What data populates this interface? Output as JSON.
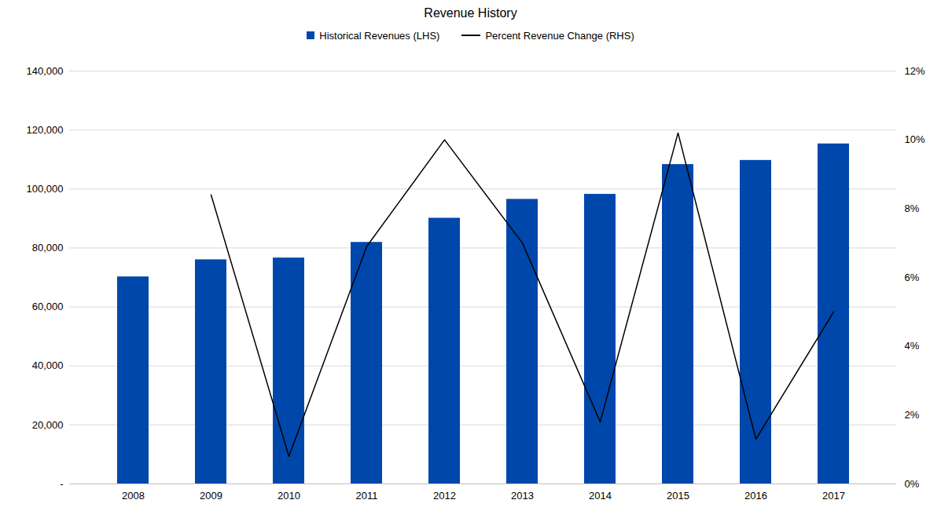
{
  "chart_data": {
    "type": "bar",
    "title": "Revenue History",
    "categories": [
      "2008",
      "2009",
      "2010",
      "2011",
      "2012",
      "2013",
      "2014",
      "2015",
      "2016",
      "2017"
    ],
    "series": [
      {
        "name": "Historical Revenues (LHS)",
        "type": "bar",
        "color": "#0047ab",
        "values": [
          70200,
          76000,
          76600,
          81900,
          90100,
          96500,
          98200,
          108300,
          109700,
          115300
        ]
      },
      {
        "name": "Percent Revenue Change (RHS)",
        "type": "line",
        "axis": "y2",
        "color": "#000000",
        "values": [
          null,
          8.4,
          0.8,
          6.9,
          10.0,
          7.0,
          1.8,
          10.2,
          1.3,
          5.0
        ]
      }
    ],
    "ylim": [
      0,
      140000
    ],
    "yticks": [
      {
        "value": 0,
        "label": "-"
      },
      {
        "value": 20000,
        "label": "20,000"
      },
      {
        "value": 40000,
        "label": "40,000"
      },
      {
        "value": 60000,
        "label": "60,000"
      },
      {
        "value": 80000,
        "label": "80,000"
      },
      {
        "value": 100000,
        "label": "100,000"
      },
      {
        "value": 120000,
        "label": "120,000"
      },
      {
        "value": 140000,
        "label": "140,000"
      }
    ],
    "y2lim": [
      0,
      12
    ],
    "y2ticks": [
      {
        "value": 0,
        "label": "0%"
      },
      {
        "value": 2,
        "label": "2%"
      },
      {
        "value": 4,
        "label": "4%"
      },
      {
        "value": 6,
        "label": "6%"
      },
      {
        "value": 8,
        "label": "8%"
      },
      {
        "value": 10,
        "label": "10%"
      },
      {
        "value": 12,
        "label": "12%"
      }
    ],
    "grid": true,
    "legend": "top"
  }
}
